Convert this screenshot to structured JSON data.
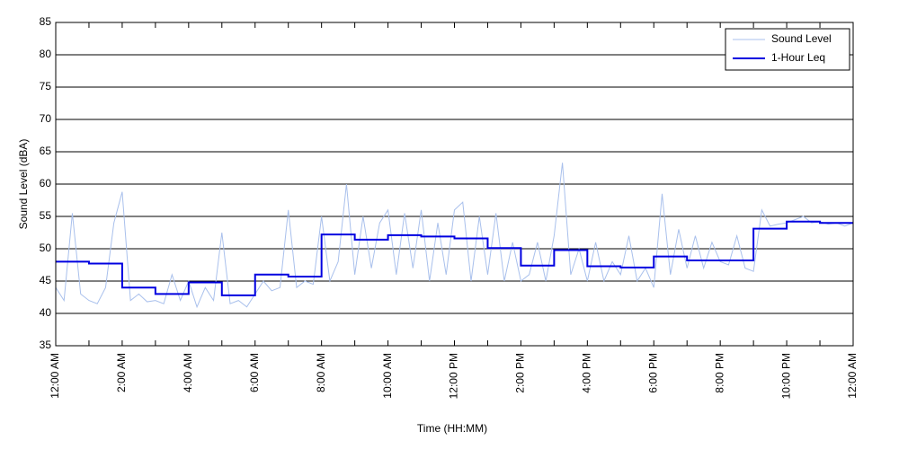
{
  "chart_data": {
    "type": "line",
    "xlabel": "Time (HH:MM)",
    "ylabel": "Sound Level (dBA)",
    "xlim": [
      0,
      24
    ],
    "ylim": [
      35,
      85
    ],
    "yticks": [
      35,
      40,
      45,
      50,
      55,
      60,
      65,
      70,
      75,
      80,
      85
    ],
    "xticks": [
      {
        "value": 0,
        "label": "12:00 AM"
      },
      {
        "value": 2,
        "label": "2:00 AM"
      },
      {
        "value": 4,
        "label": "4:00 AM"
      },
      {
        "value": 6,
        "label": "6:00 AM"
      },
      {
        "value": 8,
        "label": "8:00 AM"
      },
      {
        "value": 10,
        "label": "10:00 AM"
      },
      {
        "value": 12,
        "label": "12:00 PM"
      },
      {
        "value": 14,
        "label": "2:00 PM"
      },
      {
        "value": 16,
        "label": "4:00 PM"
      },
      {
        "value": 18,
        "label": "6:00 PM"
      },
      {
        "value": 20,
        "label": "8:00 PM"
      },
      {
        "value": 22,
        "label": "10:00 PM"
      },
      {
        "value": 24,
        "label": "12:00 AM"
      }
    ],
    "xminorticks": [
      1,
      3,
      5,
      7,
      9,
      11,
      13,
      15,
      17,
      19,
      21,
      23
    ],
    "grid": true,
    "legend": "upper right",
    "series": [
      {
        "name": "Sound Level",
        "color": "#a9c0ec",
        "step": false,
        "x": [
          0,
          0.25,
          0.5,
          0.75,
          1,
          1.25,
          1.5,
          1.75,
          2,
          2.25,
          2.5,
          2.75,
          3,
          3.25,
          3.5,
          3.75,
          4,
          4.25,
          4.5,
          4.75,
          5,
          5.25,
          5.5,
          5.75,
          6,
          6.25,
          6.5,
          6.75,
          7,
          7.25,
          7.5,
          7.75,
          8,
          8.25,
          8.5,
          8.75,
          9,
          9.25,
          9.5,
          9.75,
          10,
          10.25,
          10.5,
          10.75,
          11,
          11.25,
          11.5,
          11.75,
          12,
          12.25,
          12.5,
          12.75,
          13,
          13.25,
          13.5,
          13.75,
          14,
          14.25,
          14.5,
          14.75,
          15,
          15.25,
          15.5,
          15.75,
          16,
          16.25,
          16.5,
          16.75,
          17,
          17.25,
          17.5,
          17.75,
          18,
          18.25,
          18.5,
          18.75,
          19,
          19.25,
          19.5,
          19.75,
          20,
          20.25,
          20.5,
          20.75,
          21,
          21.25,
          21.5,
          21.75,
          22,
          22.25,
          22.5,
          22.75,
          23,
          23.25,
          23.5,
          23.75,
          24
        ],
        "values": [
          44,
          42,
          55.5,
          43,
          42,
          41.5,
          44,
          54,
          58.8,
          42,
          43,
          41.8,
          42,
          41.5,
          46,
          42,
          45,
          41,
          44,
          42,
          52.5,
          41.5,
          42,
          41,
          43,
          45,
          43.5,
          44,
          56,
          44,
          45,
          44.5,
          55,
          45,
          48,
          60,
          46,
          55,
          47,
          54,
          56,
          46,
          55.5,
          47,
          56,
          45,
          54,
          46,
          56,
          57.2,
          45,
          55,
          46,
          55.5,
          45,
          51,
          45,
          46,
          51,
          45,
          52,
          63.3,
          46,
          50,
          45,
          51,
          45,
          48,
          46,
          52,
          45,
          47,
          44,
          58.5,
          46,
          53,
          47,
          52,
          47,
          51,
          48,
          47.5,
          52,
          47,
          46.5,
          56,
          53.5,
          53.8,
          54,
          54.5,
          55,
          54,
          54.2,
          53.8,
          54,
          53.5,
          54
        ]
      },
      {
        "name": "1-Hour Leq",
        "color": "#0000e0",
        "step": true,
        "x": [
          0,
          1,
          2,
          3,
          4,
          5,
          6,
          7,
          8,
          9,
          10,
          11,
          12,
          13,
          14,
          15,
          16,
          17,
          18,
          19,
          20,
          21,
          22,
          23
        ],
        "values": [
          48,
          47.7,
          44,
          43,
          44.8,
          42.8,
          46,
          45.7,
          52.2,
          51.4,
          52.1,
          51.9,
          51.6,
          50.1,
          47.4,
          49.8,
          47.3,
          47.1,
          48.8,
          48.2,
          48.2,
          53.1,
          54.2,
          54.0
        ]
      }
    ]
  }
}
